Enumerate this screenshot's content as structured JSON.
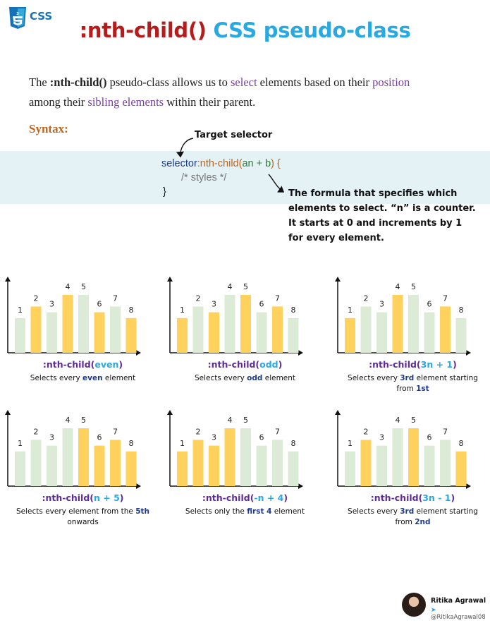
{
  "header": {
    "logo_text": "CSS",
    "title_part1": ":nth-child()",
    "title_part2": "CSS pseudo-class"
  },
  "intro": {
    "t1": "The ",
    "code": ":nth-child()",
    "t2": " pseudo-class allows us to ",
    "h1": "select",
    "t3": " elements based on their ",
    "h2": "position",
    "t4": "among their ",
    "h3": "sibling elements",
    "t5": " within their parent."
  },
  "syntax": {
    "label": "Syntax:",
    "line1_selector": "selector",
    "line1_fn": ":nth-child(",
    "line1_arg": "an + b",
    "line1_close": ") {",
    "line2": "/* styles */",
    "line3": "}",
    "target_label": "Target selector",
    "formula_label": "The formula that specifies which elements to select. “n” is a counter. It starts at 0 and increments by 1 for every element."
  },
  "colors": {
    "selected": "#ffd25e",
    "unselected": "#dcebd6",
    "axis": "#111111"
  },
  "chart_data": [
    {
      "type": "bar",
      "title_prefix": ":nth-child(",
      "arg": "even",
      "title_suffix": ")",
      "desc": [
        "Selects every ",
        "even",
        " element",
        "",
        "",
        ""
      ],
      "categories": [
        "1",
        "2",
        "3",
        "4",
        "5",
        "6",
        "7",
        "8"
      ],
      "values": [
        3,
        4,
        3.5,
        5,
        5,
        3.5,
        4,
        3
      ],
      "selected": [
        false,
        true,
        false,
        true,
        false,
        true,
        false,
        true
      ]
    },
    {
      "type": "bar",
      "title_prefix": ":nth-child(",
      "arg": "odd",
      "title_suffix": ")",
      "desc": [
        "Selects every ",
        "odd",
        " element",
        "",
        "",
        ""
      ],
      "categories": [
        "1",
        "2",
        "3",
        "4",
        "5",
        "6",
        "7",
        "8"
      ],
      "values": [
        3,
        4,
        3.5,
        5,
        5,
        3.5,
        4,
        3
      ],
      "selected": [
        true,
        false,
        true,
        false,
        true,
        false,
        true,
        false
      ]
    },
    {
      "type": "bar",
      "title_prefix": ":nth-child(",
      "arg": "3n + 1",
      "title_suffix": ")",
      "desc": [
        "Selects every ",
        "3rd",
        " element starting",
        "from ",
        "1st",
        ""
      ],
      "categories": [
        "1",
        "2",
        "3",
        "4",
        "5",
        "6",
        "7",
        "8"
      ],
      "values": [
        3,
        4,
        3.5,
        5,
        5,
        3.5,
        4,
        3
      ],
      "selected": [
        true,
        false,
        false,
        true,
        false,
        false,
        true,
        false
      ]
    },
    {
      "type": "bar",
      "title_prefix": ":nth-child(",
      "arg": "n + 5",
      "title_suffix": ")",
      "desc": [
        "Selects every element from the ",
        "5th",
        "",
        "onwards",
        "",
        ""
      ],
      "categories": [
        "1",
        "2",
        "3",
        "4",
        "5",
        "6",
        "7",
        "8"
      ],
      "values": [
        3,
        4,
        3.5,
        5,
        5,
        3.5,
        4,
        3
      ],
      "selected": [
        false,
        false,
        false,
        false,
        true,
        true,
        true,
        true
      ]
    },
    {
      "type": "bar",
      "title_prefix": ":nth-child(",
      "arg": "-n + 4",
      "title_suffix": ")",
      "desc": [
        "Selects only the ",
        "first 4",
        " element",
        "",
        "",
        ""
      ],
      "categories": [
        "1",
        "2",
        "3",
        "4",
        "5",
        "6",
        "7",
        "8"
      ],
      "values": [
        3,
        4,
        3.5,
        5,
        5,
        3.5,
        4,
        3
      ],
      "selected": [
        true,
        true,
        true,
        true,
        false,
        false,
        false,
        false
      ]
    },
    {
      "type": "bar",
      "title_prefix": ":nth-child(",
      "arg": "3n - 1",
      "title_suffix": ")",
      "desc": [
        "Selects every ",
        "3rd",
        " element starting",
        "from ",
        "2nd",
        ""
      ],
      "categories": [
        "1",
        "2",
        "3",
        "4",
        "5",
        "6",
        "7",
        "8"
      ],
      "values": [
        3,
        4,
        3.5,
        5,
        5,
        3.5,
        4,
        3
      ],
      "selected": [
        false,
        true,
        false,
        false,
        true,
        false,
        false,
        true
      ]
    }
  ],
  "author": {
    "name": "Ritika Agrawal",
    "handle": "@RitikaAgrawal08",
    "twitter_icon": "twitter-bird-icon"
  }
}
